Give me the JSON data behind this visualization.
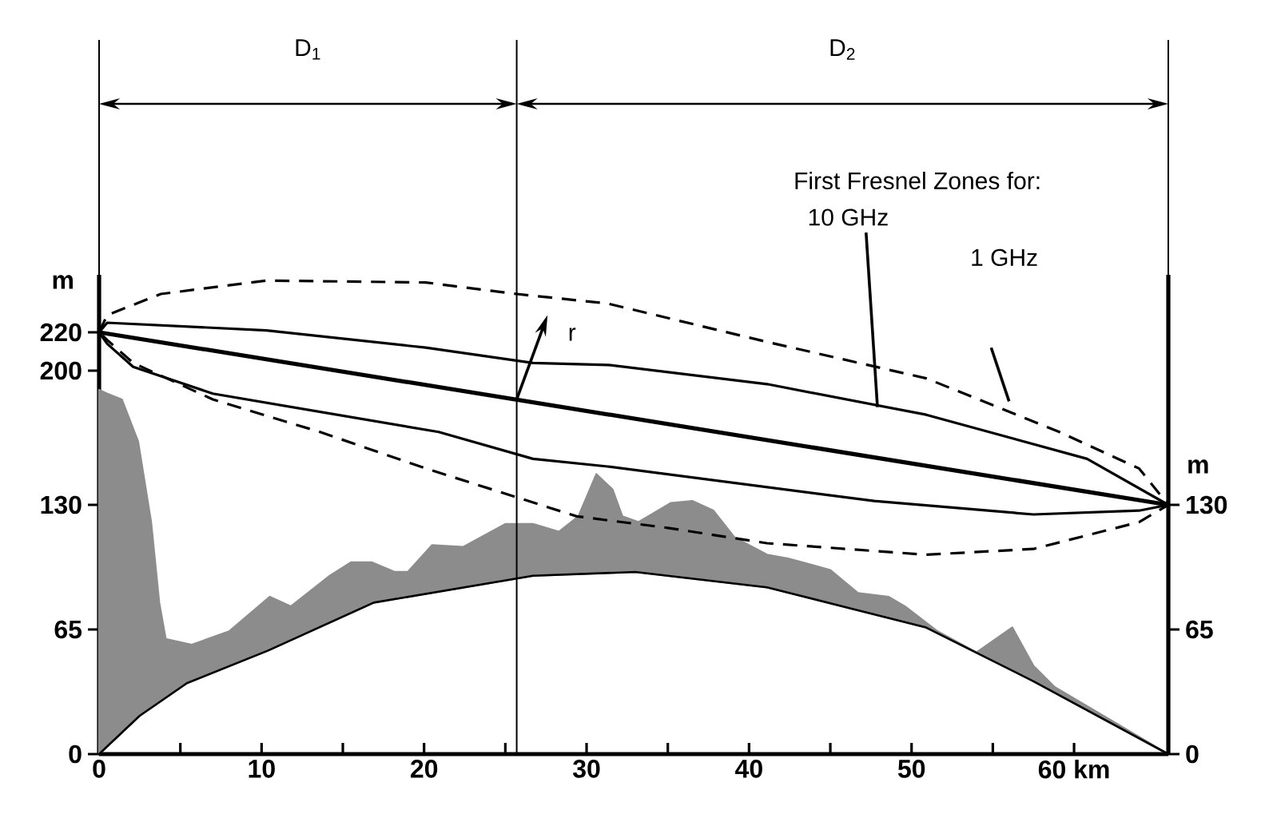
{
  "chart_data": {
    "type": "line",
    "xlim": [
      0,
      65.8
    ],
    "ylim": [
      0,
      250
    ],
    "y2lim": [
      0,
      250
    ],
    "xticks": [
      0,
      {
        "value": 5,
        "label": null
      },
      10,
      {
        "value": 15,
        "label": null
      },
      20,
      {
        "value": 25,
        "label": null
      },
      30,
      {
        "value": 35,
        "label": null
      },
      40,
      {
        "value": 45,
        "label": null
      },
      50,
      {
        "value": 55,
        "label": null
      },
      {
        "value": 60,
        "label": "60 km"
      }
    ],
    "yticks": [
      0,
      65,
      130,
      200,
      220
    ],
    "y2ticks": [
      0,
      65,
      130
    ],
    "ylabel": "m",
    "y2label": "m",
    "ref_lines": [
      {
        "axis": "x",
        "value": 25.7
      }
    ],
    "annotations": [
      "D$_{1}$",
      "D$_{2}$",
      "First Fresnel Zones for:",
      "10 GHz",
      "1 GHz",
      {
        "text": "r",
        "x": 25.7,
        "y": 185
      }
    ],
    "series": [
      {
        "type": "area",
        "color": "#8c8c8c",
        "x": [
          0,
          0.5,
          1.4,
          2.4,
          3.2,
          3.7,
          4.1,
          5.7,
          8.0,
          10.5,
          11.8,
          14.2,
          15.5,
          16.8,
          18.2,
          19.0,
          20.5,
          22.4,
          25.0,
          26.7,
          28.3,
          29.5,
          30.6,
          31.6,
          32.2,
          33.2,
          35.2,
          36.5,
          37.8,
          39.1,
          41.1,
          42.4,
          45.0,
          46.7,
          48.6,
          49.6,
          51.6,
          54.0,
          56.2,
          57.5,
          58.8,
          65.8
        ],
        "values": [
          190,
          188,
          185,
          163,
          121,
          79,
          60,
          57,
          64,
          82,
          77,
          93,
          100,
          100,
          95,
          95,
          109,
          108,
          120,
          120,
          116,
          124,
          146,
          138,
          124,
          121,
          131,
          132,
          127,
          113,
          104,
          102,
          96,
          84,
          82,
          77,
          64,
          53,
          66,
          46,
          35,
          0
        ]
      },
      {
        "color": "#000000",
        "x": [
          0,
          2.5,
          5.4,
          10.4,
          16.9,
          26.7,
          33,
          41.1,
          50.9,
          57.5,
          65.8
        ],
        "values": [
          0,
          20,
          37,
          54,
          79,
          93,
          95,
          87,
          66,
          38,
          0
        ]
      },
      {
        "color": "#000000",
        "x": [
          0,
          65.8
        ],
        "values": [
          220,
          130
        ]
      }
    ]
  }
}
